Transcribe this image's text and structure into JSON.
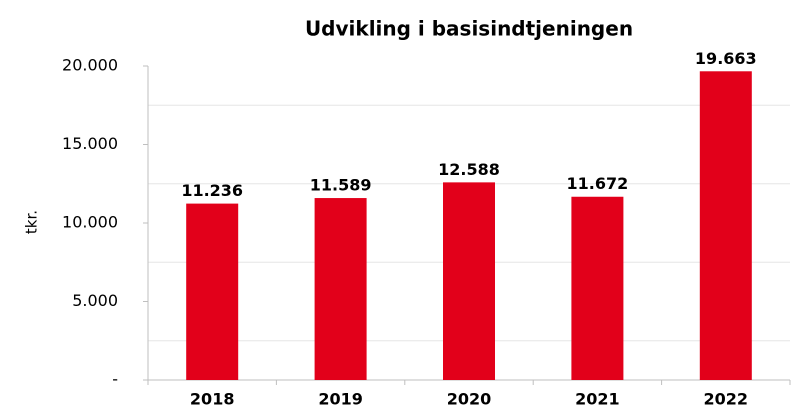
{
  "chart_data": {
    "type": "bar",
    "title": "Udvikling i basisindtjeningen",
    "y_label": "tkr.",
    "categories": [
      "2018",
      "2019",
      "2020",
      "2021",
      "2022"
    ],
    "values": [
      11236,
      11589,
      12588,
      11672,
      19663
    ],
    "value_labels": [
      "11.236",
      "11.589",
      "12.588",
      "11.672",
      "19.663"
    ],
    "color": "#e2001a",
    "ylim": [
      0,
      20000
    ],
    "yticks": [
      {
        "value": 0,
        "label": "-"
      },
      {
        "value": 5000,
        "label": "5.000"
      },
      {
        "value": 10000,
        "label": "10.000"
      },
      {
        "value": 15000,
        "label": "15.000"
      },
      {
        "value": 20000,
        "label": "20.000"
      }
    ],
    "ygrid": [
      2500,
      7500,
      12500,
      17500
    ]
  }
}
